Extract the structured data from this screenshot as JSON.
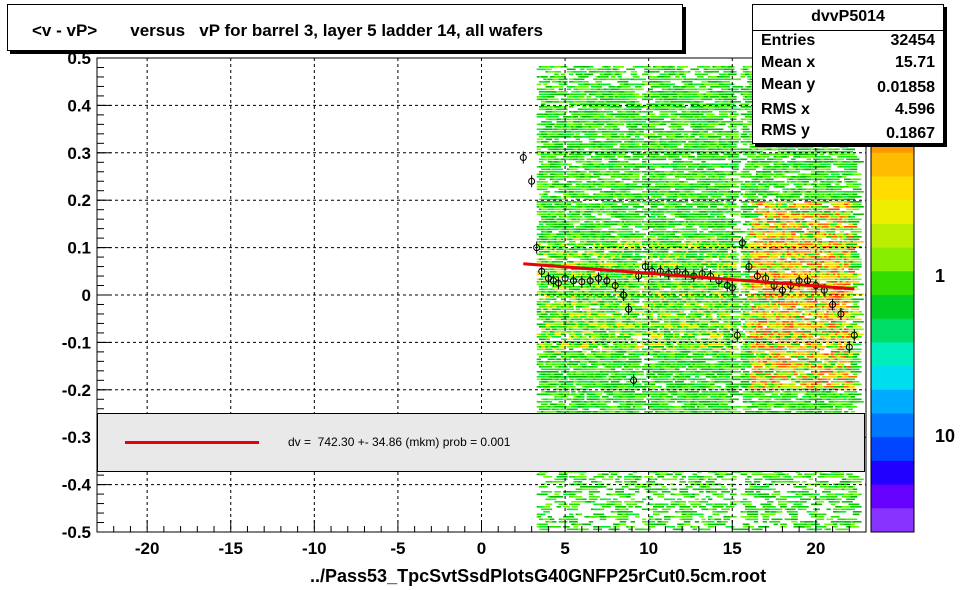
{
  "title": "<v - vP>       versus   vP for barrel 3, layer 5 ladder 14, all wafers",
  "footer": "../Pass53_TpcSvtSsdPlotsG40GNFP25rCut0.5cm.root",
  "stats": {
    "name": "dvvP5014",
    "rows": [
      {
        "label": "Entries",
        "value": "32454"
      },
      {
        "label": "Mean x",
        "value": "15.71"
      },
      {
        "label": "Mean y",
        "value": "0.01858"
      },
      {
        "label": "RMS x",
        "value": "4.596"
      },
      {
        "label": "RMS y",
        "value": "0.1867"
      }
    ]
  },
  "legend": {
    "text": "dv =  742.30 +- 34.86 (mkm) prob = 0.001",
    "line_color": "#e8000b"
  },
  "colors": {
    "fit": "#e8000b",
    "marker": "#000000",
    "heat_low": "#00dd00",
    "heat_mid": "#ffee00",
    "heat_high": "#ff3300"
  },
  "chart_data": {
    "type": "heatmap",
    "xlim": [
      -23,
      23
    ],
    "ylim": [
      -0.5,
      0.5
    ],
    "x_ticks": [
      -20,
      -15,
      -10,
      -5,
      0,
      5,
      10,
      15,
      20
    ],
    "x_tick_labels": [
      "-20",
      "-15",
      "-10",
      "-5",
      "0",
      "5",
      "10",
      "15",
      "20"
    ],
    "y_ticks": [
      -0.5,
      -0.4,
      -0.3,
      -0.2,
      -0.1,
      0,
      0.1,
      0.2,
      0.3,
      0.4,
      0.5
    ],
    "y_tick_labels": [
      "-0.5",
      "-0.4",
      "-0.3",
      "-0.2",
      "-0.1",
      "0",
      "0.1",
      "0.2",
      "0.3",
      "0.4",
      "0.5"
    ],
    "grid": true,
    "z_scale": "log",
    "z_tick_labels": [
      "1",
      "10"
    ],
    "occupied_x_bands": [
      [
        3.3,
        4.9
      ],
      [
        5.1,
        9.2
      ],
      [
        9.6,
        15.0
      ],
      [
        15.5,
        22.3
      ]
    ],
    "dense_x_bands": [
      [
        16.0,
        22.0
      ]
    ],
    "fit": {
      "x": [
        2.5,
        22.3
      ],
      "y": [
        0.066,
        0.013
      ]
    },
    "profile": {
      "x": [
        2.5,
        3.0,
        3.3,
        3.6,
        4.0,
        4.3,
        4.6,
        5.0,
        5.5,
        6.0,
        6.5,
        7.0,
        7.5,
        8.0,
        8.5,
        8.8,
        9.1,
        9.4,
        9.8,
        10.2,
        10.7,
        11.2,
        11.7,
        12.2,
        12.7,
        13.2,
        13.7,
        14.2,
        14.7,
        15.0,
        15.3,
        15.6,
        16.0,
        16.5,
        17.0,
        17.5,
        18.0,
        18.5,
        19.0,
        19.5,
        20.0,
        20.5,
        21.0,
        21.5,
        22.0,
        22.3
      ],
      "y": [
        0.29,
        0.24,
        0.1,
        0.05,
        0.035,
        0.03,
        0.025,
        0.035,
        0.03,
        0.028,
        0.03,
        0.035,
        0.03,
        0.02,
        0.0,
        -0.03,
        -0.18,
        0.04,
        0.06,
        0.05,
        0.05,
        0.045,
        0.05,
        0.045,
        0.04,
        0.045,
        0.04,
        0.03,
        0.02,
        0.015,
        -0.085,
        0.11,
        0.06,
        0.04,
        0.035,
        0.02,
        0.01,
        0.02,
        0.03,
        0.03,
        0.02,
        0.01,
        -0.02,
        -0.04,
        -0.11,
        -0.085
      ]
    }
  }
}
